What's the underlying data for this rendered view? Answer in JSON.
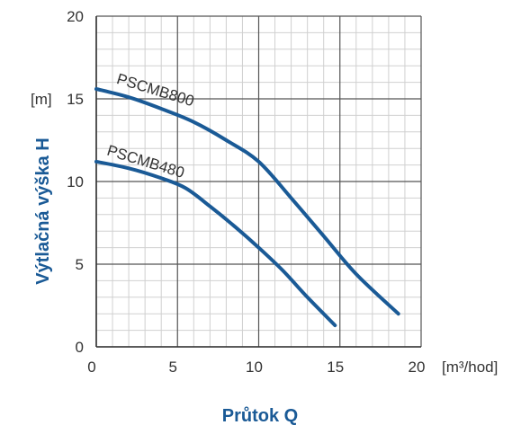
{
  "chart_data": {
    "type": "line",
    "title": "",
    "xlabel": "Průtok Q",
    "ylabel": "Výtlačná výška H",
    "x_unit": "[m³/hod]",
    "y_unit": "[m]",
    "xlim": [
      0,
      20
    ],
    "ylim": [
      0,
      20
    ],
    "x_ticks": [
      0,
      5,
      10,
      15,
      20
    ],
    "y_ticks": [
      0,
      5,
      10,
      15,
      20
    ],
    "grid": true,
    "accent_color": "#1a5a96",
    "series": [
      {
        "name": "PSCMB800",
        "color": "#1a5a96",
        "x": [
          0,
          2,
          4,
          6,
          8,
          10,
          12,
          14,
          16,
          18.6
        ],
        "y": [
          15.6,
          15.1,
          14.4,
          13.6,
          12.5,
          11.2,
          9.0,
          6.7,
          4.4,
          2.0
        ]
      },
      {
        "name": "PSCMB480",
        "color": "#1a5a96",
        "x": [
          0,
          2,
          4,
          5.5,
          7,
          8.5,
          10,
          11.5,
          13,
          14.7
        ],
        "y": [
          11.2,
          10.8,
          10.2,
          9.6,
          8.5,
          7.3,
          6.0,
          4.6,
          3.0,
          1.3
        ]
      }
    ]
  }
}
